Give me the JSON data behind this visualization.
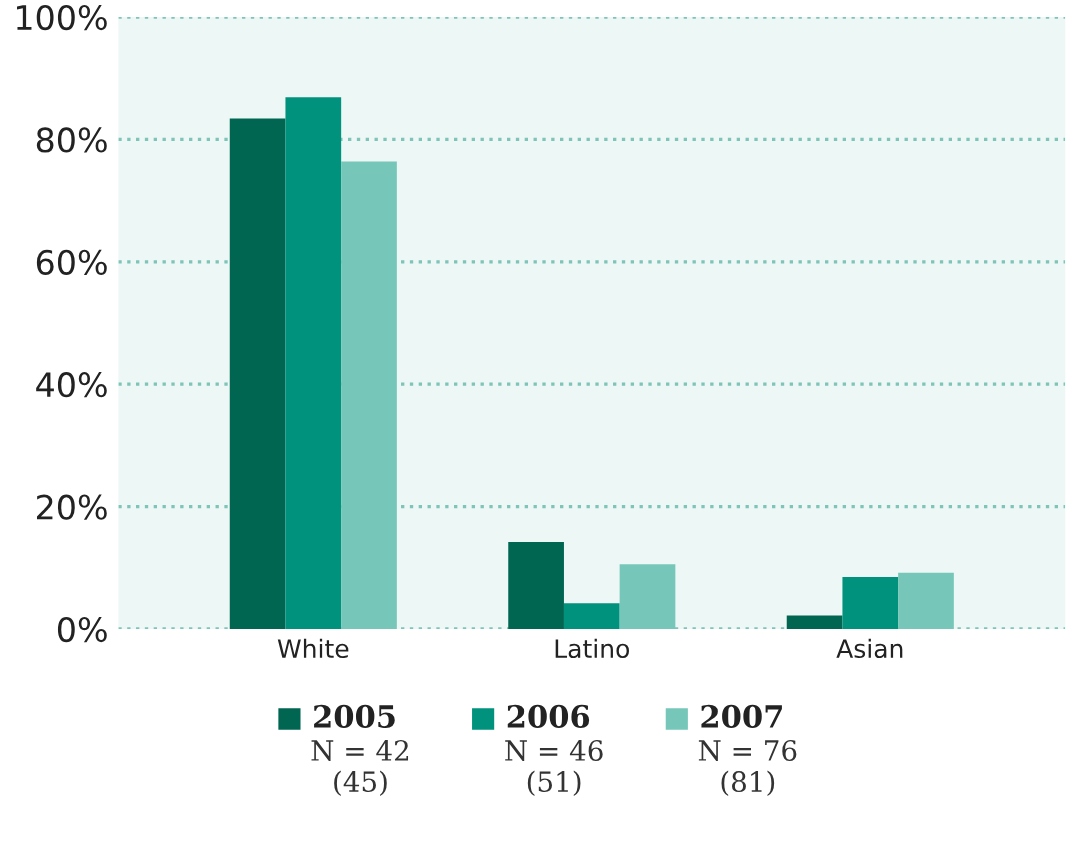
{
  "chart_data": {
    "type": "bar",
    "categories": [
      "White",
      "Latino",
      "Asian"
    ],
    "series": [
      {
        "name": "2005",
        "color": "#006652",
        "values": [
          83.4,
          14.2,
          2.2
        ]
      },
      {
        "name": "2006",
        "color": "#00927c",
        "values": [
          86.9,
          4.2,
          8.5
        ]
      },
      {
        "name": "2007",
        "color": "#76c7b9",
        "values": [
          76.4,
          10.6,
          9.2
        ]
      }
    ],
    "ylim": [
      0,
      100
    ],
    "yticks": [
      {
        "value": 0,
        "label": "0%"
      },
      {
        "value": 20,
        "label": "20%"
      },
      {
        "value": 40,
        "label": "40%"
      },
      {
        "value": 60,
        "label": "60%"
      },
      {
        "value": 80,
        "label": "80%"
      },
      {
        "value": 100,
        "label": "100%"
      }
    ],
    "grid": "y",
    "legend": "bottom",
    "annotations": [
      "N = 42\n(45)",
      "N = 46\n(51)",
      "N = 76\n(81)"
    ]
  }
}
